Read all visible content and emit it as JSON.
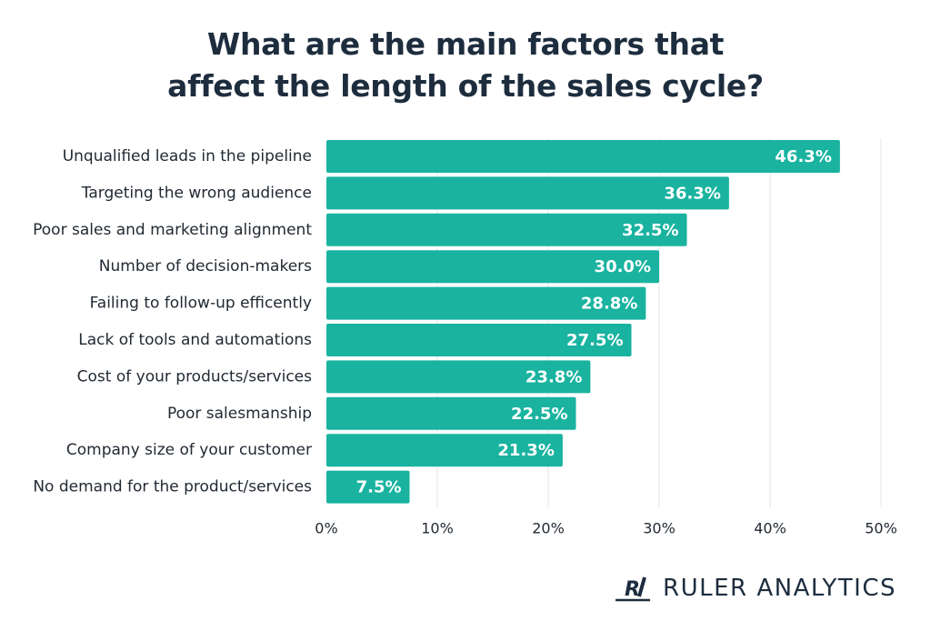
{
  "title_lines": [
    "What are the main factors that",
    "affect the length of the sales cycle?"
  ],
  "brand": {
    "name": "RULER ANALYTICS",
    "logo_text": "R",
    "color": "#1d2d3e"
  },
  "colors": {
    "bar": "#19b3a0",
    "grid": "#e4e6e8",
    "text": "#222a33"
  },
  "chart_data": {
    "type": "bar",
    "orientation": "horizontal",
    "categories": [
      "Unqualified leads in the pipeline",
      "Targeting the wrong audience",
      "Poor sales and marketing alignment",
      "Number of decision-makers",
      "Failing to follow-up efficently",
      "Lack of tools and automations",
      "Cost of your products/services",
      "Poor salesmanship",
      "Company size of your customer",
      "No demand for the product/services"
    ],
    "values": [
      46.3,
      36.3,
      32.5,
      30.0,
      28.8,
      27.5,
      23.8,
      22.5,
      21.3,
      7.5
    ],
    "value_labels": [
      "46.3%",
      "36.3%",
      "32.5%",
      "30.0%",
      "28.8%",
      "27.5%",
      "23.8%",
      "22.5%",
      "21.3%",
      "7.5%"
    ],
    "xlim": [
      0,
      50
    ],
    "xticks": [
      0,
      10,
      20,
      30,
      40,
      50
    ],
    "xtick_labels": [
      "0%",
      "10%",
      "20%",
      "30%",
      "40%",
      "50%"
    ],
    "title": "What are the main factors that affect the length of the sales cycle?",
    "xlabel": "",
    "ylabel": "",
    "grid": "vertical",
    "legend": "none"
  }
}
